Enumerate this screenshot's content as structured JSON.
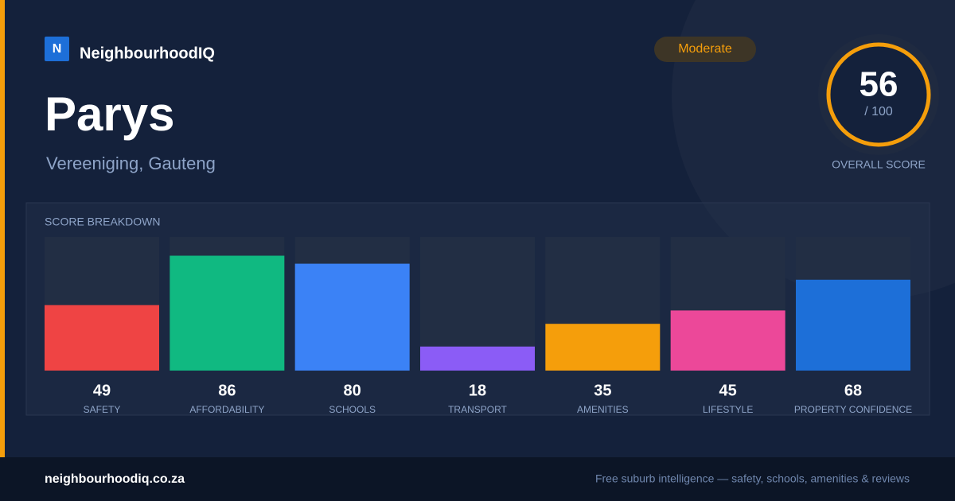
{
  "brand": "NeighbourhoodIQ",
  "logo_letter": "N",
  "title": "Parys",
  "subtitle": "Vereeniging, Gauteng",
  "badge": "Moderate",
  "overall": {
    "score": 56,
    "out_of": "/ 100",
    "label": "OVERALL SCORE"
  },
  "chart_data": {
    "type": "bar",
    "title": "SCORE BREAKDOWN",
    "categories": [
      "SAFETY",
      "AFFORDABILITY",
      "SCHOOLS",
      "TRANSPORT",
      "AMENITIES",
      "LIFESTYLE",
      "PROPERTY CONFIDENCE"
    ],
    "values": [
      49,
      86,
      80,
      18,
      35,
      45,
      68
    ],
    "colors": [
      "#ef4444",
      "#10b981",
      "#3b82f6",
      "#8b5cf6",
      "#f59e0b",
      "#ec4899",
      "#1d6fd8"
    ],
    "ylim": [
      0,
      100
    ]
  },
  "footer": {
    "site": "neighbourhoodiq.co.za",
    "tagline": "Free suburb intelligence — safety, schools, amenities & reviews"
  }
}
